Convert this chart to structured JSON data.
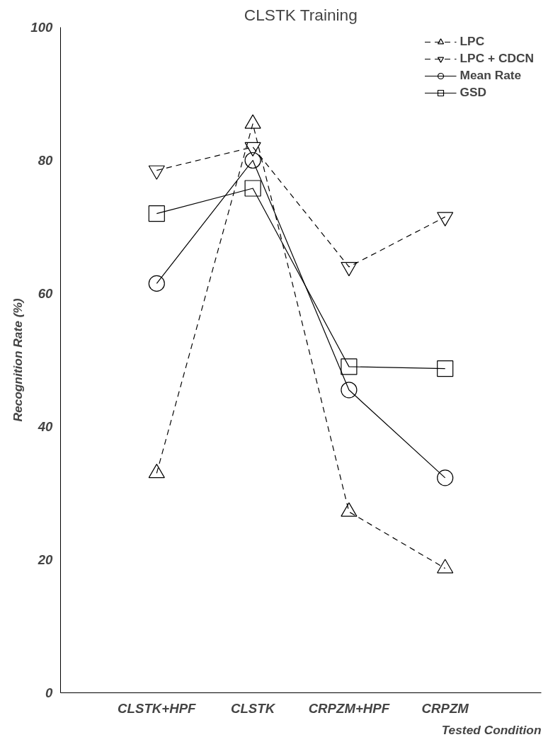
{
  "chart_data": {
    "type": "line",
    "title": "CLSTK Training",
    "xlabel": "Tested Condition",
    "ylabel": "Recognition Rate (%)",
    "categories": [
      "CLSTK+HPF",
      "CLSTK",
      "CRPZM+HPF",
      "CRPZM"
    ],
    "series": [
      {
        "name": "LPC",
        "color": "#000000",
        "values": [
          33,
          85.5,
          27.2,
          18.7
        ],
        "marker": "triangle",
        "line_style": "dashed"
      },
      {
        "name": "LPC + CDCN",
        "color": "#000000",
        "values": [
          78.5,
          82,
          64,
          71.5
        ],
        "marker": "triangle_down",
        "line_style": "dashed"
      },
      {
        "name": "Mean Rate",
        "color": "#000000",
        "values": [
          61.5,
          80,
          45.5,
          32.3
        ],
        "marker": "circle",
        "line_style": "solid"
      },
      {
        "name": "GSD",
        "color": "#000000",
        "values": [
          72,
          75.8,
          49,
          48.7
        ],
        "marker": "square",
        "line_style": "solid"
      }
    ],
    "ylim": [
      0,
      100
    ],
    "yticks": [
      0,
      20,
      40,
      60,
      80,
      100
    ],
    "grid": false,
    "legend": "top right"
  }
}
